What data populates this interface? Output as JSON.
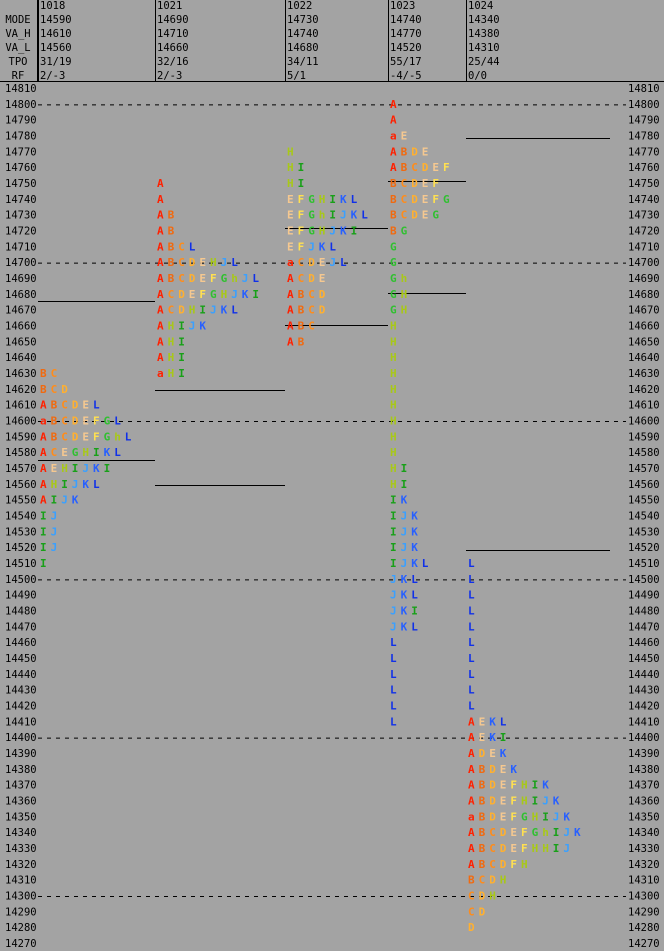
{
  "chart_data": {
    "type": "market-profile",
    "row_labels": [
      "MODE",
      "VA_H",
      "VA_L",
      "TPO",
      "RF"
    ],
    "prices": [
      14810,
      14800,
      14790,
      14780,
      14770,
      14760,
      14750,
      14740,
      14730,
      14720,
      14710,
      14700,
      14690,
      14680,
      14670,
      14660,
      14650,
      14640,
      14630,
      14620,
      14610,
      14600,
      14590,
      14580,
      14570,
      14560,
      14550,
      14540,
      14530,
      14520,
      14510,
      14500,
      14490,
      14480,
      14470,
      14460,
      14450,
      14440,
      14430,
      14420,
      14410,
      14400,
      14390,
      14380,
      14370,
      14360,
      14350,
      14340,
      14330,
      14320,
      14310,
      14300,
      14290,
      14280,
      14270
    ],
    "highlight_color": "#ffff99",
    "letter_colors": {
      "A": "#ff2000",
      "a": "#ff2000",
      "B": "#f06a10",
      "C": "#ff8c1a",
      "D": "#ffb030",
      "E": "#f5c890",
      "F": "#ffe050",
      "G": "#30c030",
      "H": "#a8c818",
      "h": "#a8c818",
      "I": "#18a018",
      "J": "#3aa0ff",
      "K": "#2860ff",
      "L": "#1030e8"
    },
    "profiles": [
      {
        "date": "1018",
        "stats": [
          "14590",
          "14610",
          "14560",
          "31/19",
          "2/-3"
        ],
        "va_lines": [
          14676,
          14576
        ],
        "top": 14630,
        "rows": [
          "BC",
          "BCD",
          "ABCDEL",
          "aBCDEFGL",
          "ABCDEFGhL",
          "ACEGHIKL",
          "AEHIJKI",
          "AHIJKL",
          "AIJK",
          "IJ",
          "IJ",
          "IJ",
          "I"
        ]
      },
      {
        "date": "1021",
        "stats": [
          "14690",
          "14710",
          "14660",
          "32/16",
          "2/-3"
        ],
        "va_lines": [
          14620,
          14560
        ],
        "top": 14750,
        "rows": [
          "A",
          "A",
          "AB",
          "AB",
          "ABCL",
          "ABCDEHJL",
          "ABCDEFGhJL",
          "ACDEFGHJKI",
          "ACDHIJKL",
          "AHIJK",
          "AHI",
          "AHI",
          "aHI"
        ]
      },
      {
        "date": "1022",
        "stats": [
          "14730",
          "14740",
          "14680",
          "34/11",
          "5/1"
        ],
        "va_lines": [
          14722,
          14661
        ],
        "top": 14770,
        "rows": [
          "H",
          "HI",
          "HI",
          "EFGHIKL",
          "EFGhIJKL",
          "EFGHJKI",
          "EFJKL",
          "aCDEJL",
          "ACDE",
          "ABCD",
          "ABCD",
          "ABC",
          "AB"
        ]
      },
      {
        "date": "1023",
        "stats": [
          "14740",
          "14770",
          "14520",
          "55/17",
          "-4/-5"
        ],
        "va_lines": [
          14752,
          14681
        ],
        "top": 14800,
        "rows": [
          "A",
          "A",
          "aE",
          "ABDE",
          "ABCDEF",
          "BCDEF",
          "BCDEFG",
          "BCDEG",
          "BG",
          "G",
          "G",
          "Gh",
          "GH",
          "GH",
          "H",
          "H",
          "H",
          "H",
          "H",
          "H",
          "H",
          "H",
          "H",
          "HI",
          "HI",
          "IK",
          "IJK",
          "IJK",
          "IJK",
          "IJKL",
          "JKL",
          "JKL",
          "JKI",
          "JKL",
          "L",
          "L",
          "L",
          "L",
          "L",
          "L"
        ]
      },
      {
        "date": "1024",
        "stats": [
          "14340",
          "14380",
          "14310",
          "25/44",
          "0/0"
        ],
        "va_lines": [
          14779,
          14519
        ],
        "top": 14510,
        "rows": [
          "L",
          "L",
          "L",
          "L",
          "L",
          "L",
          "L",
          "L",
          "L",
          "L",
          "AEKL",
          "AEKI",
          "ADEK",
          "ABDEK",
          "ABDEFHIK",
          "ABDEFHIJK",
          "aBDEFGHIJK",
          "ABCDEFGhIJK",
          "ABCDEFHHIJ",
          "ABCDFH",
          "BCDH",
          "CDH",
          "CD",
          "D"
        ]
      }
    ]
  }
}
